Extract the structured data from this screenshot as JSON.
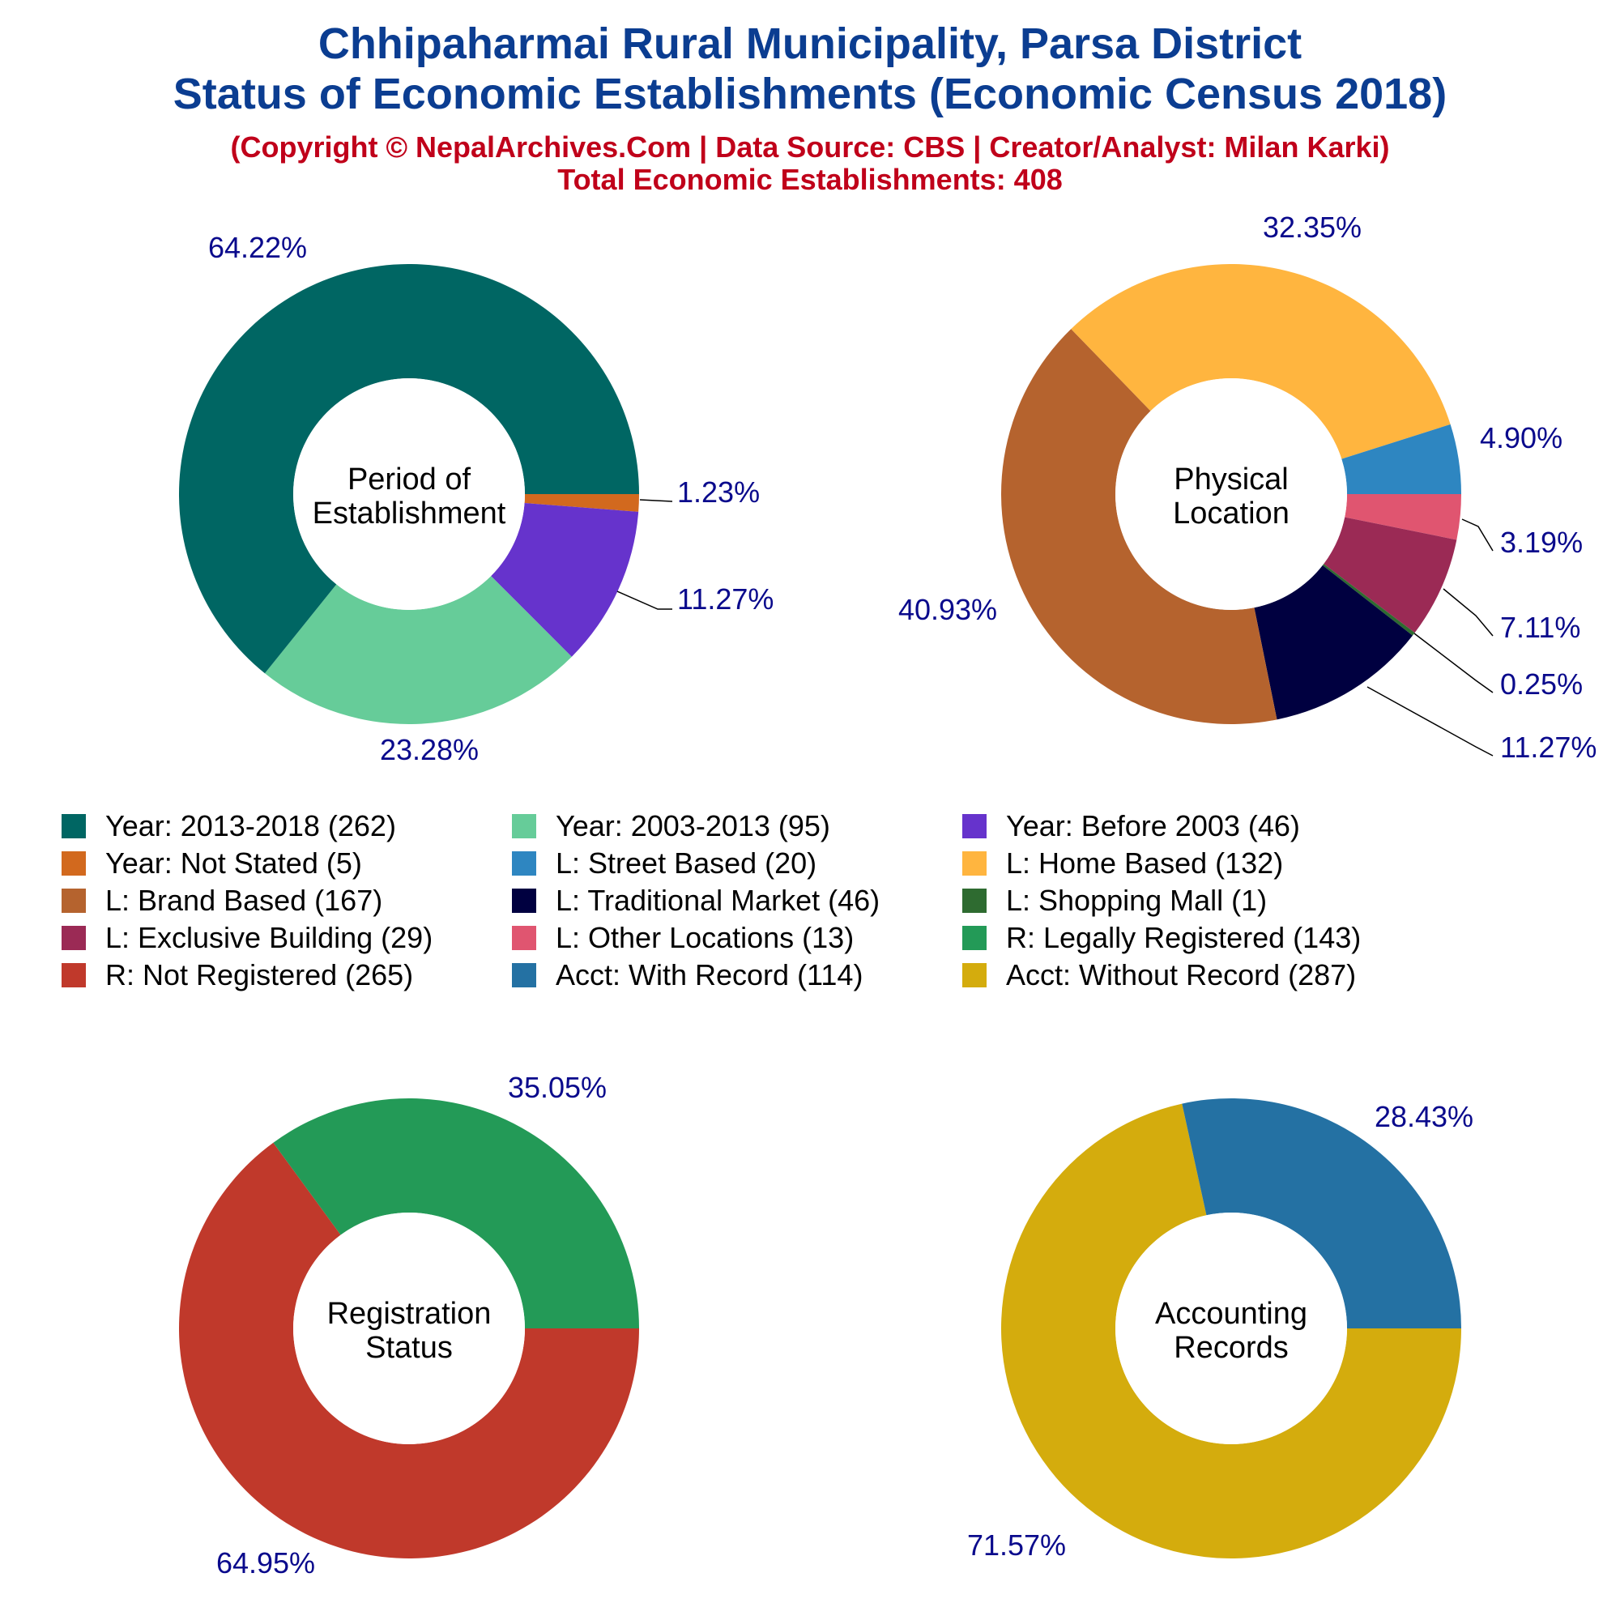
{
  "titles": {
    "line1": "Chhipaharmai Rural Municipality, Parsa District",
    "line2": "Status of Economic Establishments (Economic Census 2018)",
    "copyright": "(Copyright © NepalArchives.Com | Data Source: CBS | Creator/Analyst: Milan Karki)",
    "total": "Total Economic Establishments: 408"
  },
  "chart_data": [
    {
      "type": "pie",
      "subtype": "donut",
      "center_label": [
        "Period of",
        "Establishment"
      ],
      "slices": [
        {
          "name": "Year: 2013-2018",
          "value": 262,
          "percent_label": "64.22%",
          "color": "#006663"
        },
        {
          "name": "Year: Not Stated",
          "value": 5,
          "percent_label": "1.23%",
          "color": "#d2691e"
        },
        {
          "name": "Year: Before 2003",
          "value": 46,
          "percent_label": "11.27%",
          "color": "#6633cc"
        },
        {
          "name": "Year: 2003-2013",
          "value": 95,
          "percent_label": "23.28%",
          "color": "#66cc99"
        }
      ]
    },
    {
      "type": "pie",
      "subtype": "donut",
      "center_label": [
        "Physical",
        "Location"
      ],
      "slices": [
        {
          "name": "L: Street Based",
          "value": 20,
          "percent_label": "4.90%",
          "color": "#2e86c1"
        },
        {
          "name": "L: Other Locations",
          "value": 13,
          "percent_label": "3.19%",
          "color": "#e05570"
        },
        {
          "name": "L: Exclusive Building",
          "value": 29,
          "percent_label": "7.11%",
          "color": "#9b2a55"
        },
        {
          "name": "L: Shopping Mall",
          "value": 1,
          "percent_label": "0.25%",
          "color": "#2e6b30"
        },
        {
          "name": "L: Traditional Market",
          "value": 46,
          "percent_label": "11.27%",
          "color": "#000040"
        },
        {
          "name": "L: Brand Based",
          "value": 167,
          "percent_label": "40.93%",
          "color": "#b5632e"
        },
        {
          "name": "L: Home Based",
          "value": 132,
          "percent_label": "32.35%",
          "color": "#ffb53f"
        }
      ]
    },
    {
      "type": "pie",
      "subtype": "donut",
      "center_label": [
        "Registration",
        "Status"
      ],
      "slices": [
        {
          "name": "R: Not Registered",
          "value": 265,
          "percent_label": "64.95%",
          "color": "#c0392b"
        },
        {
          "name": "R: Legally Registered",
          "value": 143,
          "percent_label": "35.05%",
          "color": "#239a57"
        }
      ]
    },
    {
      "type": "pie",
      "subtype": "donut",
      "center_label": [
        "Accounting",
        "Records"
      ],
      "slices": [
        {
          "name": "Acct: Without Record",
          "value": 287,
          "percent_label": "71.57%",
          "color": "#d4ac0d"
        },
        {
          "name": "Acct: With Record",
          "value": 114,
          "percent_label": "28.43%",
          "color": "#2471a3"
        }
      ]
    }
  ],
  "legend": [
    {
      "label": "Year: 2013-2018 (262)",
      "color": "#006663"
    },
    {
      "label": "Year: 2003-2013 (95)",
      "color": "#66cc99"
    },
    {
      "label": "Year: Before 2003 (46)",
      "color": "#6633cc"
    },
    {
      "label": "Year: Not Stated (5)",
      "color": "#d2691e"
    },
    {
      "label": "L: Street Based (20)",
      "color": "#2e86c1"
    },
    {
      "label": "L: Home Based (132)",
      "color": "#ffb53f"
    },
    {
      "label": "L: Brand Based (167)",
      "color": "#b5632e"
    },
    {
      "label": "L: Traditional Market (46)",
      "color": "#000040"
    },
    {
      "label": "L: Shopping Mall (1)",
      "color": "#2e6b30"
    },
    {
      "label": "L: Exclusive Building (29)",
      "color": "#9b2a55"
    },
    {
      "label": "L: Other Locations (13)",
      "color": "#e05570"
    },
    {
      "label": "R: Legally Registered (143)",
      "color": "#239a57"
    },
    {
      "label": "R: Not Registered (265)",
      "color": "#c0392b"
    },
    {
      "label": "Acct: With Record (114)",
      "color": "#2471a3"
    },
    {
      "label": "Acct: Without Record (287)",
      "color": "#d4ac0d"
    }
  ],
  "colors": {
    "title": "#0b3d91",
    "subtitle": "#c0001a",
    "percent_label": "#0a0a8c"
  }
}
